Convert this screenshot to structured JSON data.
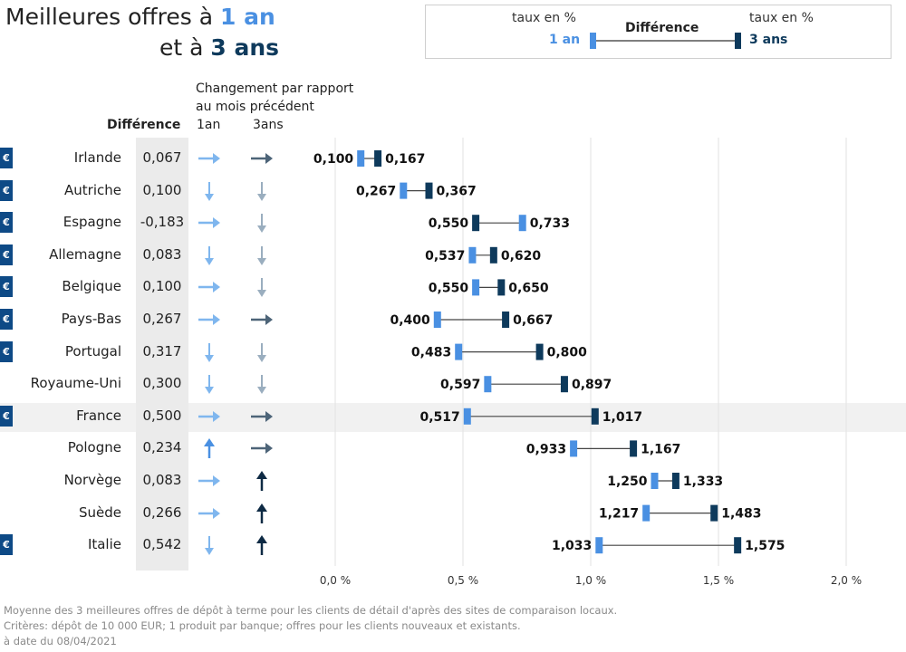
{
  "title": {
    "line1_prefix": "Meilleures offres à ",
    "line1_accent": "1 an",
    "line2_prefix": "et à ",
    "line2_accent": "3 ans"
  },
  "legend": {
    "left_top": "taux en %",
    "left_key": "1 an",
    "middle": "Différence",
    "right_top": "taux en %",
    "right_key": "3 ans"
  },
  "headers": {
    "difference": "Différence",
    "change_line1": "Changement par rapport",
    "change_line2": "au mois précédent",
    "col_1an": "1an",
    "col_3ans": "3ans"
  },
  "footer": {
    "line1": "Moyenne des 3 meilleures offres de dépôt à terme pour les clients de détail d'après des sites de comparaison locaux.",
    "line2": "Critères: dépôt de 10 000 EUR; 1 produit par banque; offres pour les clients nouveaux et existants.",
    "line3": "à date du 08/04/2021"
  },
  "colors": {
    "one_year": "#4a90e2",
    "three_year": "#0e3a5c",
    "euro_badge": "#0e4a86",
    "arrow_1an": "#7fb6ee",
    "arrow_3ans_side": "#4d6478",
    "arrow_down": "#9aaebf",
    "arrow_up_dark": "#0e2a44"
  },
  "icons": {
    "euro_badge": "€"
  },
  "chart_data": {
    "type": "dumbbell",
    "xlim": [
      0,
      2.0
    ],
    "x_ticks": [
      0.0,
      0.5,
      1.0,
      1.5,
      2.0
    ],
    "x_tick_labels": [
      "0,0 %",
      "0,5 %",
      "1,0 %",
      "1,5 %",
      "2,0 %"
    ],
    "grid": true,
    "highlight": "France",
    "rows": [
      {
        "country": "Irlande",
        "euro": true,
        "diff": "0,067",
        "chg_1an": "right",
        "chg_3ans": "right",
        "one_year": 0.1,
        "three_year": 0.167,
        "one_year_label": "0,100",
        "three_year_label": "0,167"
      },
      {
        "country": "Autriche",
        "euro": true,
        "diff": "0,100",
        "chg_1an": "down",
        "chg_3ans": "down",
        "one_year": 0.267,
        "three_year": 0.367,
        "one_year_label": "0,267",
        "three_year_label": "0,367"
      },
      {
        "country": "Espagne",
        "euro": true,
        "diff": "-0,183",
        "chg_1an": "right",
        "chg_3ans": "down",
        "one_year": 0.733,
        "three_year": 0.55,
        "one_year_label": "0,733",
        "three_year_label": "0,550"
      },
      {
        "country": "Allemagne",
        "euro": true,
        "diff": "0,083",
        "chg_1an": "down",
        "chg_3ans": "down",
        "one_year": 0.537,
        "three_year": 0.62,
        "one_year_label": "0,537",
        "three_year_label": "0,620"
      },
      {
        "country": "Belgique",
        "euro": true,
        "diff": "0,100",
        "chg_1an": "right",
        "chg_3ans": "down",
        "one_year": 0.55,
        "three_year": 0.65,
        "one_year_label": "0,550",
        "three_year_label": "0,650"
      },
      {
        "country": "Pays-Bas",
        "euro": true,
        "diff": "0,267",
        "chg_1an": "right",
        "chg_3ans": "right",
        "one_year": 0.4,
        "three_year": 0.667,
        "one_year_label": "0,400",
        "three_year_label": "0,667"
      },
      {
        "country": "Portugal",
        "euro": true,
        "diff": "0,317",
        "chg_1an": "down",
        "chg_3ans": "down",
        "one_year": 0.483,
        "three_year": 0.8,
        "one_year_label": "0,483",
        "three_year_label": "0,800"
      },
      {
        "country": "Royaume-Uni",
        "euro": false,
        "diff": "0,300",
        "chg_1an": "down",
        "chg_3ans": "down",
        "one_year": 0.597,
        "three_year": 0.897,
        "one_year_label": "0,597",
        "three_year_label": "0,897"
      },
      {
        "country": "France",
        "euro": true,
        "diff": "0,500",
        "chg_1an": "right",
        "chg_3ans": "right",
        "one_year": 0.517,
        "three_year": 1.017,
        "one_year_label": "0,517",
        "three_year_label": "1,017"
      },
      {
        "country": "Pologne",
        "euro": false,
        "diff": "0,234",
        "chg_1an": "up",
        "chg_3ans": "right",
        "one_year": 0.933,
        "three_year": 1.167,
        "one_year_label": "0,933",
        "three_year_label": "1,167"
      },
      {
        "country": "Norvège",
        "euro": false,
        "diff": "0,083",
        "chg_1an": "right",
        "chg_3ans": "up",
        "one_year": 1.25,
        "three_year": 1.333,
        "one_year_label": "1,250",
        "three_year_label": "1,333"
      },
      {
        "country": "Suède",
        "euro": false,
        "diff": "0,266",
        "chg_1an": "right",
        "chg_3ans": "up",
        "one_year": 1.217,
        "three_year": 1.483,
        "one_year_label": "1,217",
        "three_year_label": "1,483"
      },
      {
        "country": "Italie",
        "euro": true,
        "diff": "0,542",
        "chg_1an": "down",
        "chg_3ans": "up",
        "one_year": 1.033,
        "three_year": 1.575,
        "one_year_label": "1,033",
        "three_year_label": "1,575"
      }
    ]
  }
}
